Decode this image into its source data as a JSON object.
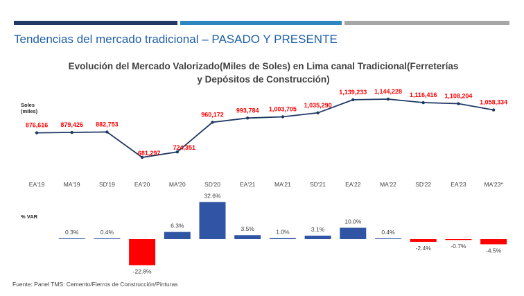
{
  "slide": {
    "title": "Tendencias del mercado tradicional – PASADO Y PRESENTE",
    "footer": "Fuente: Panel TMS: Cemento/Fierros de Construcción/Pinturas",
    "accent_bars": [
      "#1f3864",
      "#2e86c1",
      "#a6a6a6"
    ]
  },
  "chart_data": [
    {
      "type": "line",
      "title_line1": "Evolución del Mercado Valorizado(Miles de Soles)  en Lima canal Tradicional(Ferreterías",
      "title_line2": "y Depósitos de Construcción)",
      "ylabel_line1": "Soles",
      "ylabel_line2": "(miles)",
      "categories": [
        "EA'19",
        "MA'19",
        "SD'19",
        "EA'20",
        "MA'20",
        "SD'20",
        "EA'21",
        "MA'21",
        "SD'21",
        "EA'22",
        "MA'22",
        "SD'22",
        "EA'23",
        "MA'23*"
      ],
      "values": [
        876616,
        879426,
        882753,
        681297,
        724351,
        960172,
        993784,
        1003705,
        1035290,
        1139233,
        1144228,
        1116416,
        1108204,
        1058334
      ],
      "labels": [
        "876,616",
        "879,426",
        "882,753",
        "681,297",
        "724,351",
        "960,172",
        "993,784",
        "1,003,705",
        "1,035,290",
        "1,139,233",
        "1,144,228",
        "1,116,416",
        "1,108,204",
        "1,058,334"
      ],
      "line_color": "#1f3864",
      "label_color": "#ff0000"
    },
    {
      "type": "bar",
      "ylabel": "% VAR",
      "categories": [
        "MA'19",
        "SD'19",
        "EA'20",
        "MA'20",
        "SD'20",
        "EA'21",
        "MA'21",
        "SD'21",
        "EA'22",
        "MA'22",
        "SD'22",
        "EA'23",
        "MA'23*"
      ],
      "values": [
        0.3,
        0.4,
        -22.8,
        6.3,
        32.6,
        3.5,
        1.0,
        3.1,
        10.0,
        0.4,
        -2.4,
        -0.7,
        -4.5
      ],
      "labels": [
        "0.3%",
        "0.4%",
        "-22.8%",
        "6.3%",
        "32.6%",
        "3.5%",
        "1.0%",
        "3.1%",
        "10.0%",
        "0.4%",
        "-2.4%",
        "-0.7%",
        "-4.5%"
      ],
      "positive_color": "#2f55a4",
      "negative_color": "#ff0000"
    }
  ]
}
